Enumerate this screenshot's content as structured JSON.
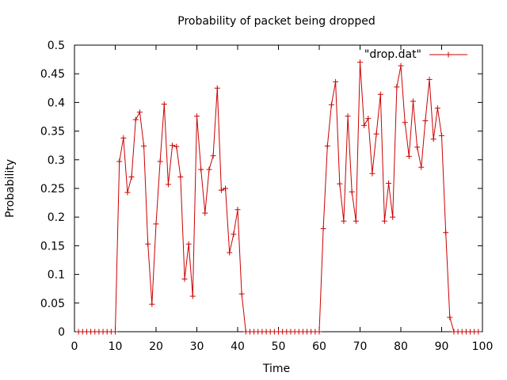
{
  "chart_data": {
    "type": "line",
    "title": "Probability of packet being dropped",
    "xlabel": "Time",
    "ylabel": "Probability",
    "xlim": [
      0,
      100
    ],
    "ylim": [
      0,
      0.5
    ],
    "x_ticks": [
      "0",
      "10",
      "20",
      "30",
      "40",
      "50",
      "60",
      "70",
      "80",
      "90",
      "100"
    ],
    "y_ticks": [
      "0",
      "0.05",
      "0.1",
      "0.15",
      "0.2",
      "0.25",
      "0.3",
      "0.35",
      "0.4",
      "0.45",
      "0.5"
    ],
    "grid": false,
    "legend_position": "top-right",
    "series": [
      {
        "name": "\"drop.dat\"",
        "color": "#cc0000",
        "marker": "plus",
        "x": [
          1,
          2,
          3,
          4,
          5,
          6,
          7,
          8,
          9,
          10,
          11,
          12,
          13,
          14,
          15,
          16,
          17,
          18,
          19,
          20,
          21,
          22,
          23,
          24,
          25,
          26,
          27,
          28,
          29,
          30,
          31,
          32,
          33,
          34,
          35,
          36,
          37,
          38,
          39,
          40,
          41,
          42,
          43,
          44,
          45,
          46,
          47,
          48,
          49,
          50,
          51,
          52,
          53,
          54,
          55,
          56,
          57,
          58,
          59,
          60,
          61,
          62,
          63,
          64,
          65,
          66,
          67,
          68,
          69,
          70,
          71,
          72,
          73,
          74,
          75,
          76,
          77,
          78,
          79,
          80,
          81,
          82,
          83,
          84,
          85,
          86,
          87,
          88,
          89,
          90,
          91,
          92,
          93,
          94,
          95,
          96,
          97,
          98,
          99
        ],
        "y": [
          0,
          0,
          0,
          0,
          0,
          0,
          0,
          0,
          0,
          0,
          0.297,
          0.338,
          0.243,
          0.27,
          0.37,
          0.383,
          0.324,
          0.153,
          0.048,
          0.188,
          0.297,
          0.397,
          0.257,
          0.325,
          0.323,
          0.27,
          0.092,
          0.153,
          0.062,
          0.376,
          0.283,
          0.207,
          0.283,
          0.307,
          0.425,
          0.247,
          0.25,
          0.138,
          0.17,
          0.213,
          0.066,
          0,
          0,
          0,
          0,
          0,
          0,
          0,
          0,
          0,
          0,
          0,
          0,
          0,
          0,
          0,
          0,
          0,
          0,
          0,
          0.18,
          0.324,
          0.396,
          0.436,
          0.258,
          0.193,
          0.376,
          0.244,
          0.193,
          0.47,
          0.36,
          0.372,
          0.276,
          0.345,
          0.414,
          0.193,
          0.259,
          0.2,
          0.427,
          0.464,
          0.365,
          0.306,
          0.402,
          0.322,
          0.287,
          0.368,
          0.44,
          0.336,
          0.39,
          0.342,
          0.173,
          0.025,
          0,
          0,
          0,
          0,
          0,
          0,
          0
        ]
      }
    ]
  }
}
